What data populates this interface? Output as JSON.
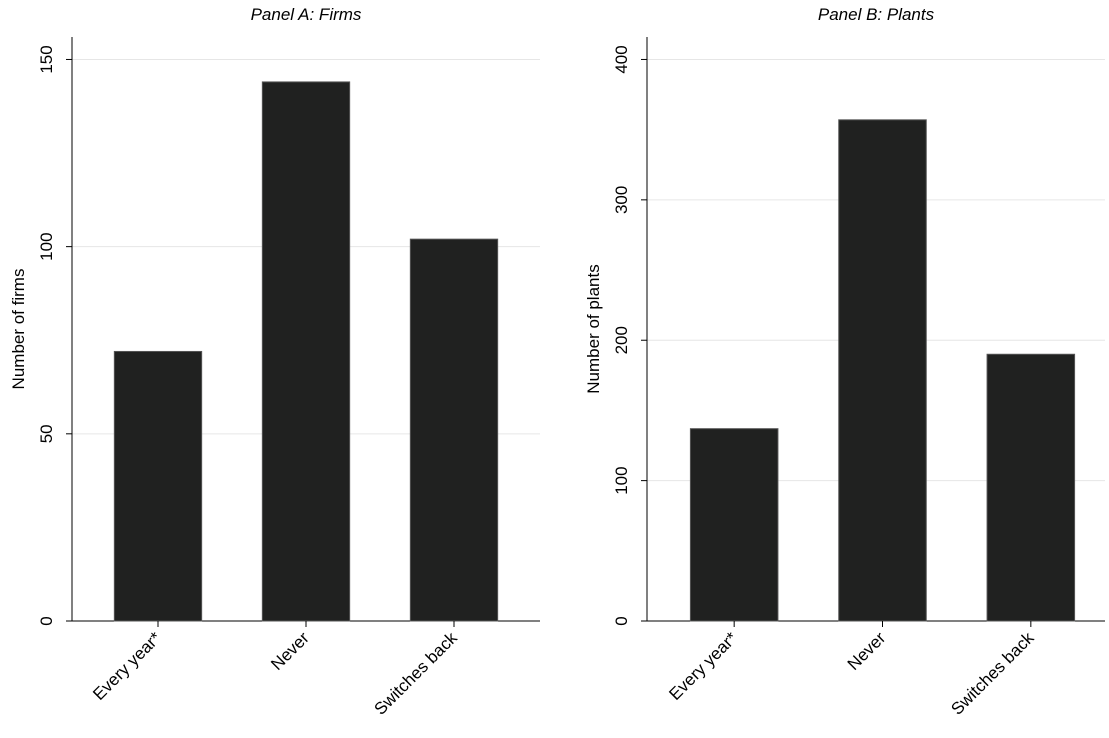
{
  "chart_data": [
    {
      "type": "bar",
      "title": "Panel A: Firms",
      "y_label": "Number of firms",
      "categories": [
        "Every year*",
        "Never",
        "Switches back"
      ],
      "values": [
        72,
        144,
        102
      ],
      "color": "#202120",
      "ylim": [
        0,
        156
      ],
      "yticks": [
        0,
        50,
        100,
        150
      ],
      "grid": true
    },
    {
      "type": "bar",
      "title": "Panel B: Plants",
      "y_label": "Number of plants",
      "categories": [
        "Every year*",
        "Never",
        "Switches back"
      ],
      "values": [
        137,
        357,
        190
      ],
      "color": "#202120",
      "ylim": [
        0,
        416
      ],
      "yticks": [
        0,
        100,
        200,
        300,
        400
      ],
      "grid": true
    }
  ]
}
